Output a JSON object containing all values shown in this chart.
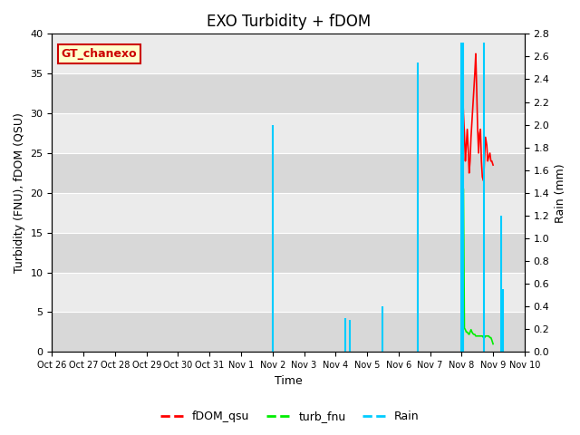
{
  "title": "EXO Turbidity + fDOM",
  "xlabel": "Time",
  "ylabel_left": "Turbidity (FNU), fDOM (QSU)",
  "ylabel_right": "Rain (mm)",
  "ylim_left": [
    0,
    40
  ],
  "ylim_right": [
    0.0,
    2.8
  ],
  "yticks_left": [
    0,
    5,
    10,
    15,
    20,
    25,
    30,
    35,
    40
  ],
  "yticks_right": [
    0.0,
    0.2,
    0.4,
    0.6,
    0.8,
    1.0,
    1.2,
    1.4,
    1.6,
    1.8,
    2.0,
    2.2,
    2.4,
    2.6,
    2.8
  ],
  "annotation_text": "GT_chanexo",
  "annotation_bg": "#ffffcc",
  "annotation_border": "#cc0000",
  "bg_color_light": "#ebebeb",
  "bg_color_dark": "#d8d8d8",
  "fig_bg": "#ffffff",
  "series": {
    "fDOM_qsu": {
      "color": "#ff0000",
      "linewidth": 1.2,
      "x": [
        13.0,
        13.03,
        13.06,
        13.09,
        13.12,
        13.15,
        13.18,
        13.21,
        13.24,
        13.27,
        13.3,
        13.33,
        13.36,
        13.39,
        13.42,
        13.45,
        13.48,
        13.51,
        13.54,
        13.57,
        13.6,
        13.63,
        13.66,
        13.7,
        13.73,
        13.76,
        13.8,
        13.83,
        13.86,
        13.9,
        13.93,
        13.96,
        14.0
      ],
      "y": [
        21.0,
        33.0,
        30.0,
        27.5,
        24.0,
        26.0,
        28.0,
        25.5,
        22.5,
        24.0,
        27.0,
        29.0,
        31.0,
        33.0,
        35.0,
        37.5,
        33.0,
        28.0,
        25.0,
        27.5,
        28.0,
        24.0,
        22.0,
        21.5,
        24.5,
        27.0,
        26.0,
        24.0,
        24.5,
        25.0,
        24.0,
        24.0,
        23.5
      ]
    },
    "turb_fnu": {
      "color": "#00ee00",
      "linewidth": 1.2,
      "x": [
        13.0,
        13.03,
        13.06,
        13.09,
        13.12,
        13.15,
        13.18,
        13.21,
        13.24,
        13.27,
        13.3,
        13.33,
        13.36,
        13.39,
        13.42,
        13.45,
        13.48,
        13.51,
        13.54,
        13.57,
        13.6,
        13.63,
        13.66,
        13.7,
        13.73,
        13.76,
        13.8,
        13.83,
        13.86,
        13.9,
        13.93,
        13.96,
        14.0
      ],
      "y": [
        3.3,
        3.0,
        20.5,
        3.0,
        2.8,
        2.5,
        2.5,
        2.3,
        2.2,
        2.5,
        2.8,
        2.5,
        2.3,
        2.2,
        2.2,
        2.0,
        2.0,
        2.0,
        2.0,
        2.0,
        2.0,
        2.0,
        2.0,
        1.8,
        1.8,
        2.0,
        2.0,
        2.0,
        2.0,
        1.8,
        1.8,
        1.5,
        1.0
      ]
    },
    "Rain": {
      "color": "#00ccff",
      "linewidth": 1.5,
      "spikes": [
        {
          "x": 7.0,
          "y_top": 2.0
        },
        {
          "x": 9.3,
          "y_top": 0.3
        },
        {
          "x": 9.45,
          "y_top": 0.28
        },
        {
          "x": 10.5,
          "y_top": 0.4
        },
        {
          "x": 11.6,
          "y_top": 2.55
        },
        {
          "x": 13.0,
          "y_top": 2.72
        },
        {
          "x": 13.05,
          "y_top": 2.72
        },
        {
          "x": 13.72,
          "y_top": 2.72
        },
        {
          "x": 14.25,
          "y_top": 1.2
        },
        {
          "x": 14.3,
          "y_top": 0.55
        }
      ]
    }
  },
  "xtick_positions": [
    0,
    1,
    2,
    3,
    4,
    5,
    6,
    7,
    8,
    9,
    10,
    11,
    12,
    13,
    14,
    15
  ],
  "xtick_labels": [
    "Oct 26",
    "Oct 27",
    "Oct 28",
    "Oct 29",
    "Oct 30",
    "Oct 31",
    "Nov 1",
    "Nov 2",
    "Nov 3",
    "Nov 4",
    "Nov 5",
    "Nov 6",
    "Nov 7",
    "Nov 8",
    "Nov 9",
    "Nov 10"
  ],
  "xmin": 0,
  "xmax": 15,
  "legend": [
    {
      "label": "fDOM_qsu",
      "color": "#ff0000"
    },
    {
      "label": "turb_fnu",
      "color": "#00ee00"
    },
    {
      "label": "Rain",
      "color": "#00ccff"
    }
  ]
}
